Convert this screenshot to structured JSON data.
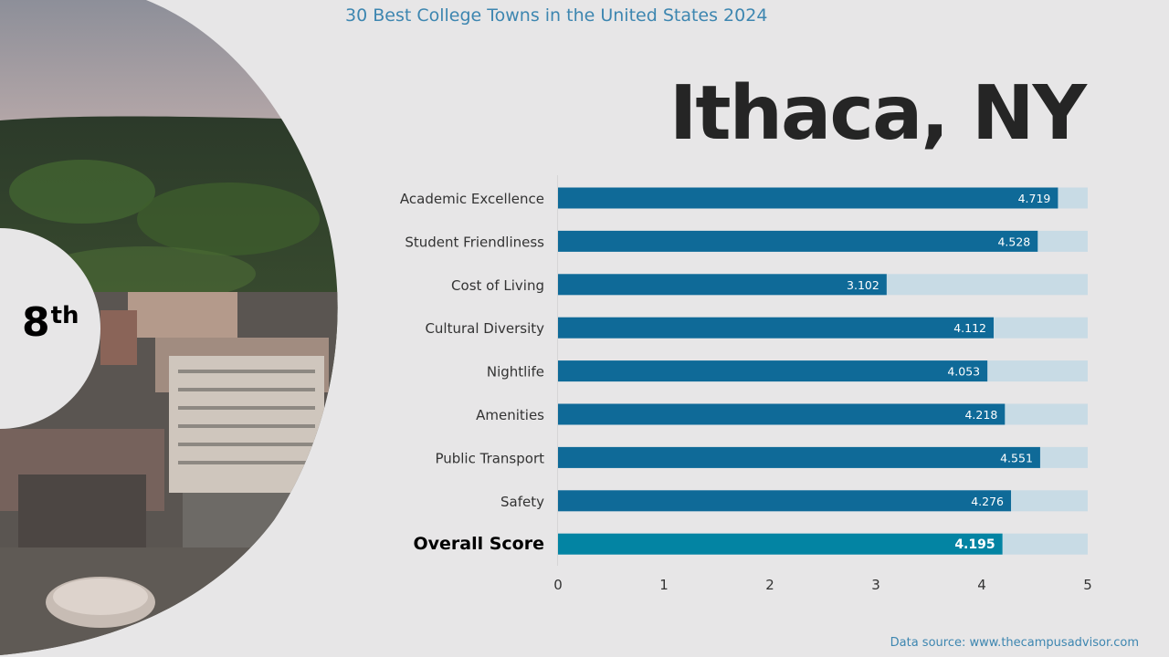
{
  "header": {
    "super_title": "30 Best College Towns in the United States 2024",
    "city": "Ithaca, NY"
  },
  "rank": {
    "number": "8",
    "suffix": "th"
  },
  "footer": {
    "source": "Data source: www.thecampusadvisor.com"
  },
  "colors": {
    "bar": "#0f6a98",
    "overall_bar": "#0384a3",
    "track": "#c8dbe5",
    "label": "#333333",
    "title_accent": "#3d86b0"
  },
  "chart_data": {
    "type": "bar",
    "orientation": "horizontal",
    "categories": [
      "Academic Excellence",
      "Student Friendliness",
      "Cost of Living",
      "Cultural Diversity",
      "Nightlife",
      "Amenities",
      "Public Transport",
      "Safety",
      "Overall Score"
    ],
    "values": [
      4.719,
      4.528,
      3.102,
      4.112,
      4.053,
      4.218,
      4.551,
      4.276,
      4.195
    ],
    "value_labels": [
      "4.719",
      "4.528",
      "3.102",
      "4.112",
      "4.053",
      "4.218",
      "4.551",
      "4.276",
      "4.195"
    ],
    "xlim": [
      0,
      5
    ],
    "xticks": [
      "0",
      "1",
      "2",
      "3",
      "4",
      "5"
    ],
    "highlight": "Overall Score",
    "background_track_max": 5,
    "grid": false,
    "legend": "none"
  }
}
